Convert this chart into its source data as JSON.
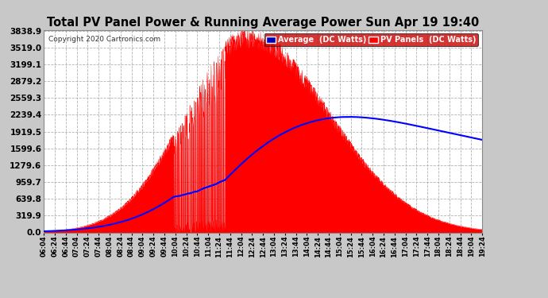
{
  "title": "Total PV Panel Power & Running Average Power Sun Apr 19 19:40",
  "copyright": "Copyright 2020 Cartronics.com",
  "yticks": [
    0.0,
    319.9,
    639.8,
    959.7,
    1279.6,
    1599.6,
    1919.5,
    2239.4,
    2559.3,
    2879.2,
    3199.1,
    3519.0,
    3838.9
  ],
  "ymax": 3838.9,
  "bg_color": "#c8c8c8",
  "plot_bg_color": "#ffffff",
  "grid_color": "#aaaaaa",
  "title_color": "#000000",
  "pv_color": "#ff0000",
  "avg_color": "#0000ff",
  "legend_pv_label": "PV Panels  (DC Watts)",
  "legend_avg_label": "Average  (DC Watts)",
  "legend_pv_bg": "#ff0000",
  "legend_avg_bg": "#0000bb"
}
